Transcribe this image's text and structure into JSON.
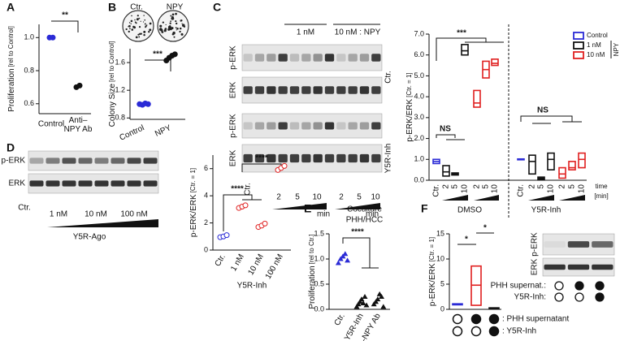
{
  "panel_labels": [
    "A",
    "B",
    "C",
    "D",
    "E",
    "F"
  ],
  "colony": {
    "labels": [
      "Ctr.",
      "NPY"
    ]
  },
  "blot_C": {
    "top_labels": [
      "1 nM",
      "10 nM : NPY"
    ],
    "rows": [
      "p-ERK",
      "ERK",
      "p-ERK",
      "ERK"
    ],
    "side": [
      "Ctr.",
      "Y5R-Inh"
    ],
    "lanes": [
      "Ctr.",
      "2",
      "5",
      "10",
      "2",
      "5",
      "10"
    ],
    "unit": [
      "min",
      "min"
    ]
  },
  "blot_D": {
    "rows": [
      "p-ERK",
      "ERK"
    ],
    "lanes": [
      "Ctr.",
      "1 nM",
      "10 nM",
      "100 nM"
    ],
    "label": "Y5R-Ago"
  },
  "blot_F": {
    "rows": [
      "p-ERK",
      "ERK"
    ],
    "condition_labels": [
      "PHH supernat.:",
      "Y5R-Inh:"
    ],
    "conditions": [
      [
        false,
        false
      ],
      [
        true,
        false
      ],
      [
        true,
        true
      ]
    ]
  },
  "chart_data": [
    {
      "type": "dot",
      "ylabel": "Proliferation",
      "ylabel_unit": "[rel to Control]",
      "ylim": [
        0.54,
        1.08
      ],
      "yticks": [
        0.6,
        0.8,
        {
          "value": 1,
          "label": "1.0"
        }
      ],
      "categories": [
        "Control",
        "Anti–NPY Ab"
      ],
      "colors": [
        "#2b2bd6",
        "#111111"
      ],
      "marker": "circle",
      "colored_labels": true,
      "values": [
        [
          1.0,
          1.0
        ],
        [
          0.7,
          0.71
        ]
      ],
      "annotations": [
        "**"
      ]
    },
    {
      "type": "dot",
      "ylabel": "Colony Size",
      "ylabel_unit": "[rel to Control]",
      "ylim": [
        0.78,
        1.8
      ],
      "yticks": [
        0.8,
        1.2,
        1.6
      ],
      "categories": [
        "Control",
        "NPY"
      ],
      "colors": [
        "#2b2bd6",
        "#111111"
      ],
      "marker": "circle",
      "colored_labels": true,
      "values": [
        [
          1.0,
          0.99,
          1.01,
          1.0
        ],
        [
          1.63,
          1.67,
          1.7,
          1.72
        ]
      ],
      "annotations": [
        "***"
      ]
    },
    {
      "type": "box",
      "ylabel": "p-ERK/ERK",
      "ylabel_unit": "[Ctr. = 1]",
      "ylim": [
        0,
        7
      ],
      "yticks": [
        {
          "value": 0,
          "label": "0.0"
        },
        {
          "value": 1,
          "label": "1.0"
        },
        {
          "value": 2,
          "label": "2.0"
        },
        {
          "value": 3,
          "label": "3.0"
        },
        {
          "value": 4,
          "label": "4.0"
        },
        {
          "value": 5,
          "label": "5.0"
        },
        {
          "value": 6,
          "label": "6.0"
        },
        {
          "value": 7,
          "label": "7.0"
        }
      ],
      "categories": [
        "Ctr.",
        "2",
        "5",
        "10",
        "2",
        "5",
        "10",
        "Ctr.",
        "2",
        "5",
        "10",
        "2",
        "5",
        "10"
      ],
      "colors": [
        "#2b2bd6",
        "#111111",
        "#111111",
        "#111111",
        "#e02020",
        "#e02020",
        "#e02020",
        "#2b2bd6",
        "#111111",
        "#111111",
        "#111111",
        "#e02020",
        "#e02020",
        "#e02020"
      ],
      "values": [
        [
          0.8,
          0.9,
          1.0
        ],
        [
          0.2,
          0.4,
          0.7
        ],
        [
          0.25,
          0.3,
          0.35
        ],
        [
          6.0,
          6.2,
          6.5
        ],
        [
          3.5,
          3.7,
          4.3
        ],
        [
          4.9,
          5.3,
          5.7
        ],
        [
          5.5,
          5.6,
          5.8
        ],
        [
          0.98,
          1.0,
          1.02
        ],
        [
          0.3,
          0.9,
          1.2
        ],
        [
          0.05,
          0.1,
          0.15
        ],
        [
          0.5,
          1.0,
          1.3
        ],
        [
          0.1,
          0.3,
          0.6
        ],
        [
          0.5,
          0.6,
          0.9
        ],
        [
          0.6,
          1.0,
          1.3
        ]
      ],
      "groups": [
        "DMSO",
        "Y5R-Inh"
      ],
      "x_unit": [
        "time",
        "[min]"
      ],
      "legend": [
        {
          "name": "Control",
          "color": "#2b2bd6"
        },
        {
          "name": "1 nM",
          "color": "#111111"
        },
        {
          "name": "10 nM",
          "color": "#e02020"
        }
      ],
      "legend_title": "NPY",
      "annotations": [
        "***",
        "NS",
        "NS"
      ]
    },
    {
      "type": "dot",
      "ylabel": "p-ERK/ERK",
      "ylabel_unit": "[Ctr. = 1]",
      "xlabel": "Y5R-Inh",
      "ylim": [
        0,
        7
      ],
      "yticks": [
        0,
        2,
        4,
        6
      ],
      "categories": [
        "Ctr.",
        "1 nM",
        "10 nM",
        "100 nM"
      ],
      "colors": [
        "#2b2bd6",
        "#e02020",
        "#e02020",
        "#e02020"
      ],
      "marker": "ring",
      "colored_labels": false,
      "values": [
        [
          0.95,
          1.0,
          1.1
        ],
        [
          3.1,
          3.2,
          3.3
        ],
        [
          1.7,
          1.8,
          1.95
        ],
        [
          5.9,
          6.05,
          6.2
        ]
      ],
      "annotations": [
        "****",
        "****"
      ]
    },
    {
      "type": "dot",
      "title": "Coculture",
      "subtitle": "PHH/HCC",
      "ylabel": "Proliferation",
      "ylabel_unit": "[rel to Ctr.]",
      "ylim": [
        0,
        1.5
      ],
      "yticks": [
        {
          "value": 0,
          "label": "0.0"
        },
        0.5,
        {
          "value": 1,
          "label": "1.0"
        },
        1.5
      ],
      "categories": [
        "Ctr.",
        "Y5R-Inh",
        "Anti–NPY Ab"
      ],
      "colors": [
        "#2b2bd6",
        "#111111",
        "#111111"
      ],
      "marker": "triangle",
      "colored_labels": false,
      "values": [
        [
          0.92,
          1.0,
          1.05,
          1.1,
          0.97
        ],
        [
          0.05,
          0.1,
          0.15,
          0.2,
          0.12,
          0.25,
          0.08
        ],
        [
          0.1,
          0.15,
          0.2,
          0.3,
          0.25,
          0.05
        ]
      ],
      "annotations": [
        "****"
      ]
    },
    {
      "type": "box",
      "ylabel": "p-ERK/ERK",
      "ylabel_unit": "[Ctr. = 1]",
      "ylim": [
        0,
        15
      ],
      "yticks": [
        0,
        5,
        10,
        15
      ],
      "conditions": [
        [
          false,
          false
        ],
        [
          true,
          false
        ],
        [
          true,
          true
        ]
      ],
      "condition_labels": [
        ": PHH supernatant",
        ": Y5R-Inh"
      ],
      "colors": [
        "#2b2bd6",
        "#e02020",
        "#111111"
      ],
      "values": [
        [
          0.9,
          1.0,
          1.1
        ],
        [
          0.8,
          4.8,
          8.6
        ],
        [
          0.1,
          0.2,
          0.3
        ]
      ],
      "annotations": [
        "*",
        "*"
      ]
    }
  ]
}
